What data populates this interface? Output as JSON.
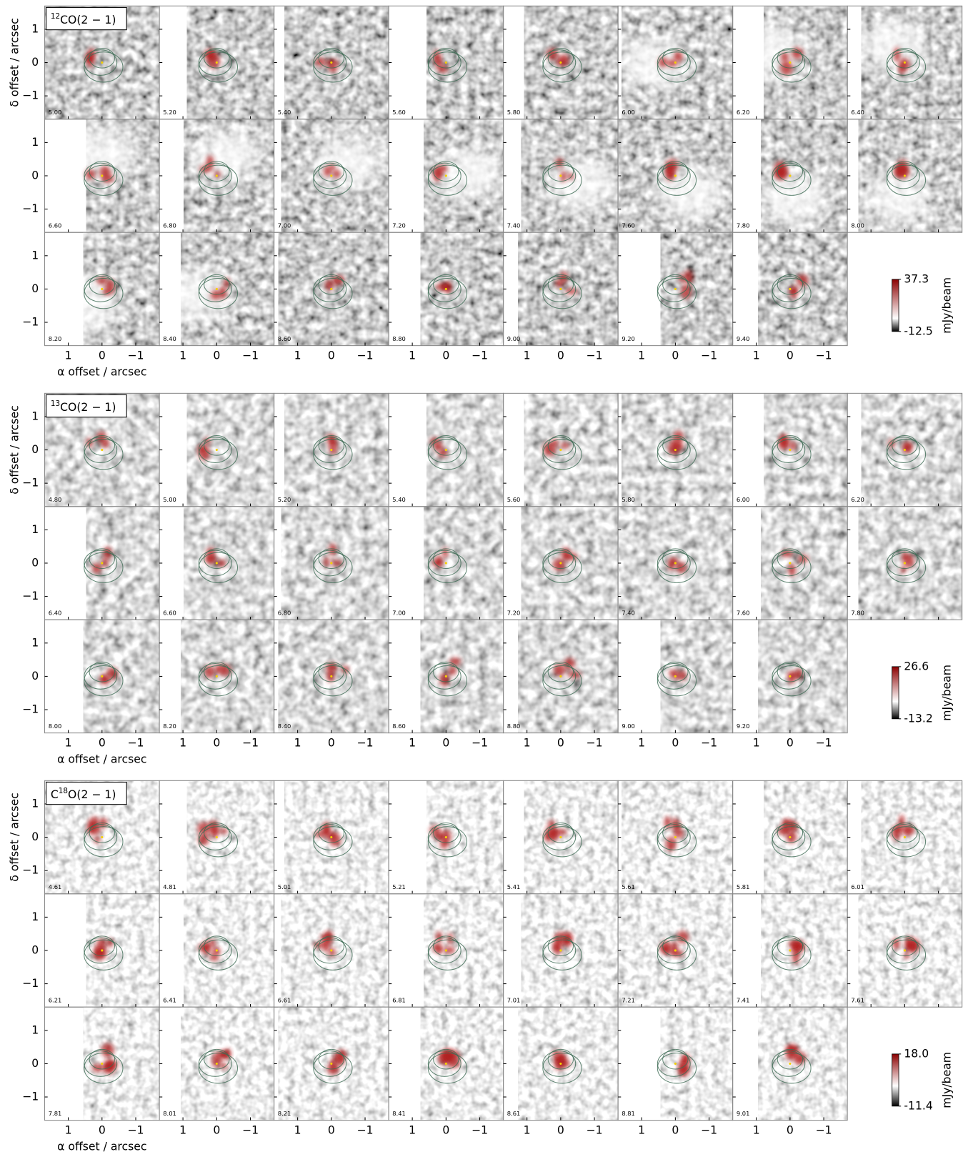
{
  "groups": [
    {
      "title": [
        {
          "text": "12",
          "sup": true
        },
        {
          "text": "CO(2 − 1)"
        }
      ],
      "channels": [
        "5.00",
        "5.20",
        "5.40",
        "5.60",
        "5.80",
        "6.00",
        "6.20",
        "6.40",
        "6.60",
        "6.80",
        "7.00",
        "7.20",
        "7.40",
        "7.60",
        "7.80",
        "8.00",
        "8.20",
        "8.40",
        "8.60",
        "8.80",
        "9.00",
        "9.20",
        "9.40"
      ],
      "clim": [
        -12.5,
        37.3
      ],
      "cticks": [
        -12.5,
        37.3
      ],
      "colorbar_label": "mJy/beam"
    },
    {
      "title": [
        {
          "text": "13",
          "sup": true
        },
        {
          "text": "CO(2 − 1)"
        }
      ],
      "channels": [
        "4.80",
        "5.00",
        "5.20",
        "5.40",
        "5.60",
        "5.80",
        "6.00",
        "6.20",
        "6.40",
        "6.60",
        "6.80",
        "7.00",
        "7.20",
        "7.40",
        "7.60",
        "7.80",
        "8.00",
        "8.20",
        "8.40",
        "8.60",
        "8.80",
        "9.00",
        "9.20"
      ],
      "clim": [
        -13.2,
        26.6
      ],
      "cticks": [
        -13.2,
        26.6
      ],
      "colorbar_label": "mJy/beam"
    },
    {
      "title": [
        {
          "text": "C"
        },
        {
          "text": "18",
          "sup": true
        },
        {
          "text": "O(2 − 1)"
        }
      ],
      "channels": [
        "4.61",
        "4.81",
        "5.01",
        "5.21",
        "5.41",
        "5.61",
        "5.81",
        "6.01",
        "6.21",
        "6.41",
        "6.61",
        "6.81",
        "7.01",
        "7.21",
        "7.41",
        "7.61",
        "7.81",
        "8.01",
        "8.21",
        "8.41",
        "8.61",
        "8.81",
        "9.01"
      ],
      "clim": [
        -11.4,
        18.0
      ],
      "cticks": [
        -11.4,
        {
          "value": 18,
          "label": "18.0"
        }
      ],
      "colorbar_label": "mJy/beam"
    }
  ],
  "axes": {
    "xlabel": "α offset / arcsec",
    "ylabel": "δ offset / arcsec",
    "xlim": [
      1.7,
      -1.7
    ],
    "ylim": [
      -1.7,
      1.7
    ],
    "xticks": [
      1,
      0,
      {
        "value": -1,
        "label": "−1"
      }
    ],
    "yticks": [
      1,
      0,
      {
        "value": -1,
        "label": "−1"
      }
    ]
  }
}
